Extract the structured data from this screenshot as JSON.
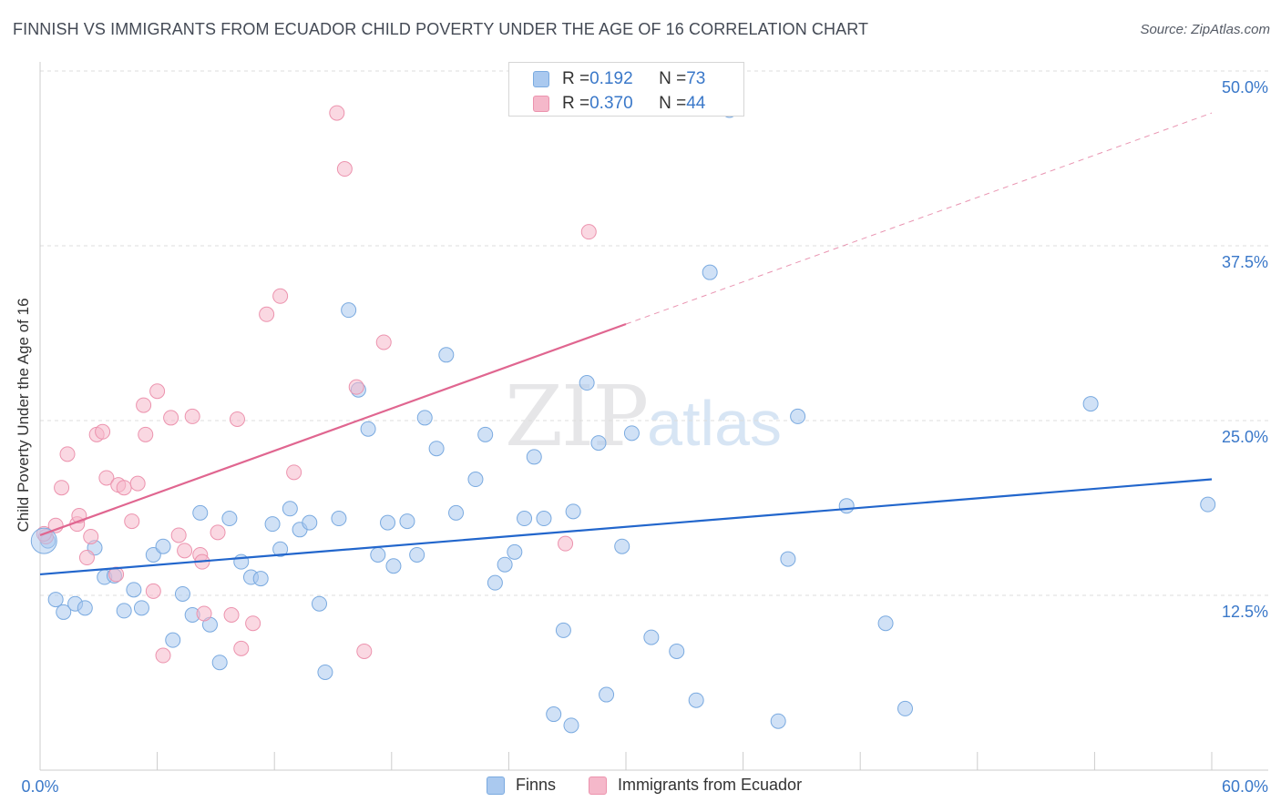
{
  "title": "FINNISH VS IMMIGRANTS FROM ECUADOR CHILD POVERTY UNDER THE AGE OF 16 CORRELATION CHART",
  "source": "Source: ZipAtlas.com",
  "watermark": {
    "zip": "ZIP",
    "atlas": "atlas"
  },
  "legend": {
    "rows": [
      {
        "r_label": "R = ",
        "r_value": "0.192",
        "n_label": "N = ",
        "n_value": "73",
        "color": "#aac9ef"
      },
      {
        "r_label": "R = ",
        "r_value": "0.370",
        "n_label": "N = ",
        "n_value": "44",
        "color": "#f5b8ca"
      }
    ]
  },
  "bottom_legend": {
    "finns": "Finns",
    "ecuador": "Immigrants from Ecuador"
  },
  "colors": {
    "finns_fill": "#aac9ef",
    "finns_stroke": "#7aaae0",
    "finns_line": "#2266cc",
    "ecuador_fill": "#f5b8ca",
    "ecuador_stroke": "#ec93ae",
    "ecuador_line": "#e06690",
    "axis_text": "#3a78c9",
    "grid": "#dddddd"
  },
  "chart_data": {
    "type": "scatter",
    "title": "FINNISH VS IMMIGRANTS FROM ECUADOR CHILD POVERTY UNDER THE AGE OF 16 CORRELATION CHART",
    "xlabel": "",
    "ylabel": "Child Poverty Under the Age of 16",
    "xlim": [
      0,
      60
    ],
    "ylim": [
      0,
      50
    ],
    "x_tick_labels": [
      "0.0%",
      "60.0%"
    ],
    "y_ticks": [
      12.5,
      25.0,
      37.5,
      50.0
    ],
    "y_tick_labels": [
      "12.5%",
      "25.0%",
      "37.5%",
      "50.0%"
    ],
    "grid": true,
    "legend_position": "top-center",
    "series": [
      {
        "name": "Finns",
        "r": 0.192,
        "n": 73,
        "trend": {
          "x": [
            0,
            60
          ],
          "y": [
            14.0,
            20.8
          ],
          "dashed_to": null
        },
        "points": [
          [
            0.4,
            16.4
          ],
          [
            0.8,
            12.2
          ],
          [
            1.2,
            11.3
          ],
          [
            1.8,
            11.9
          ],
          [
            2.3,
            11.6
          ],
          [
            2.8,
            15.9
          ],
          [
            3.3,
            13.8
          ],
          [
            3.8,
            13.9
          ],
          [
            4.3,
            11.4
          ],
          [
            4.8,
            12.9
          ],
          [
            5.2,
            11.6
          ],
          [
            5.8,
            15.4
          ],
          [
            6.3,
            16.0
          ],
          [
            6.8,
            9.3
          ],
          [
            7.3,
            12.6
          ],
          [
            7.8,
            11.1
          ],
          [
            8.2,
            18.4
          ],
          [
            8.7,
            10.4
          ],
          [
            9.2,
            7.7
          ],
          [
            9.7,
            18.0
          ],
          [
            10.3,
            14.9
          ],
          [
            10.8,
            13.8
          ],
          [
            11.3,
            13.7
          ],
          [
            11.9,
            17.6
          ],
          [
            12.3,
            15.8
          ],
          [
            12.8,
            18.7
          ],
          [
            13.3,
            17.2
          ],
          [
            13.8,
            17.7
          ],
          [
            14.3,
            11.9
          ],
          [
            14.6,
            7.0
          ],
          [
            15.3,
            18.0
          ],
          [
            15.8,
            32.9
          ],
          [
            16.3,
            27.2
          ],
          [
            16.8,
            24.4
          ],
          [
            17.3,
            15.4
          ],
          [
            17.8,
            17.7
          ],
          [
            18.1,
            14.6
          ],
          [
            18.8,
            17.8
          ],
          [
            19.3,
            15.4
          ],
          [
            19.7,
            25.2
          ],
          [
            20.3,
            23.0
          ],
          [
            20.8,
            29.7
          ],
          [
            21.3,
            18.4
          ],
          [
            22.3,
            20.8
          ],
          [
            22.8,
            24.0
          ],
          [
            23.3,
            13.4
          ],
          [
            23.8,
            14.7
          ],
          [
            24.3,
            15.6
          ],
          [
            24.8,
            18.0
          ],
          [
            25.3,
            22.4
          ],
          [
            25.8,
            18.0
          ],
          [
            26.3,
            4.0
          ],
          [
            26.8,
            10.0
          ],
          [
            27.2,
            3.2
          ],
          [
            27.3,
            18.5
          ],
          [
            28.0,
            27.7
          ],
          [
            28.6,
            23.4
          ],
          [
            29.0,
            5.4
          ],
          [
            29.8,
            16.0
          ],
          [
            30.3,
            24.1
          ],
          [
            31.3,
            9.5
          ],
          [
            32.6,
            8.5
          ],
          [
            33.6,
            5.0
          ],
          [
            34.3,
            35.6
          ],
          [
            35.3,
            47.2
          ],
          [
            37.8,
            3.5
          ],
          [
            38.3,
            15.1
          ],
          [
            38.8,
            25.3
          ],
          [
            41.3,
            18.9
          ],
          [
            43.3,
            10.5
          ],
          [
            44.3,
            4.4
          ],
          [
            53.8,
            26.2
          ],
          [
            59.8,
            19.0
          ]
        ]
      },
      {
        "name": "Immigrants from Ecuador",
        "r": 0.37,
        "n": 44,
        "trend": {
          "x": [
            0,
            30
          ],
          "y": [
            16.8,
            31.9
          ],
          "dashed_to": [
            60,
            47.0
          ]
        },
        "points": [
          [
            0.3,
            16.7
          ],
          [
            0.8,
            17.5
          ],
          [
            1.1,
            20.2
          ],
          [
            1.4,
            22.6
          ],
          [
            1.9,
            17.6
          ],
          [
            2.0,
            18.2
          ],
          [
            2.4,
            15.2
          ],
          [
            2.6,
            16.7
          ],
          [
            2.9,
            24.0
          ],
          [
            3.2,
            24.2
          ],
          [
            3.4,
            20.9
          ],
          [
            3.9,
            14.0
          ],
          [
            4.0,
            20.4
          ],
          [
            4.3,
            20.2
          ],
          [
            4.7,
            17.8
          ],
          [
            5.0,
            20.5
          ],
          [
            5.3,
            26.1
          ],
          [
            5.4,
            24.0
          ],
          [
            5.8,
            12.8
          ],
          [
            6.0,
            27.1
          ],
          [
            6.3,
            8.2
          ],
          [
            6.7,
            25.2
          ],
          [
            7.1,
            16.8
          ],
          [
            7.4,
            15.7
          ],
          [
            7.8,
            25.3
          ],
          [
            8.2,
            15.4
          ],
          [
            8.3,
            14.9
          ],
          [
            8.4,
            11.2
          ],
          [
            9.1,
            17.0
          ],
          [
            9.8,
            11.1
          ],
          [
            10.1,
            25.1
          ],
          [
            10.3,
            8.7
          ],
          [
            10.9,
            10.5
          ],
          [
            11.6,
            32.6
          ],
          [
            12.3,
            33.9
          ],
          [
            13.0,
            21.3
          ],
          [
            15.2,
            47.0
          ],
          [
            15.6,
            43.0
          ],
          [
            16.2,
            27.4
          ],
          [
            16.6,
            8.5
          ],
          [
            17.6,
            30.6
          ],
          [
            26.9,
            16.2
          ],
          [
            28.1,
            38.5
          ],
          [
            0.2,
            16.9
          ]
        ]
      }
    ]
  }
}
